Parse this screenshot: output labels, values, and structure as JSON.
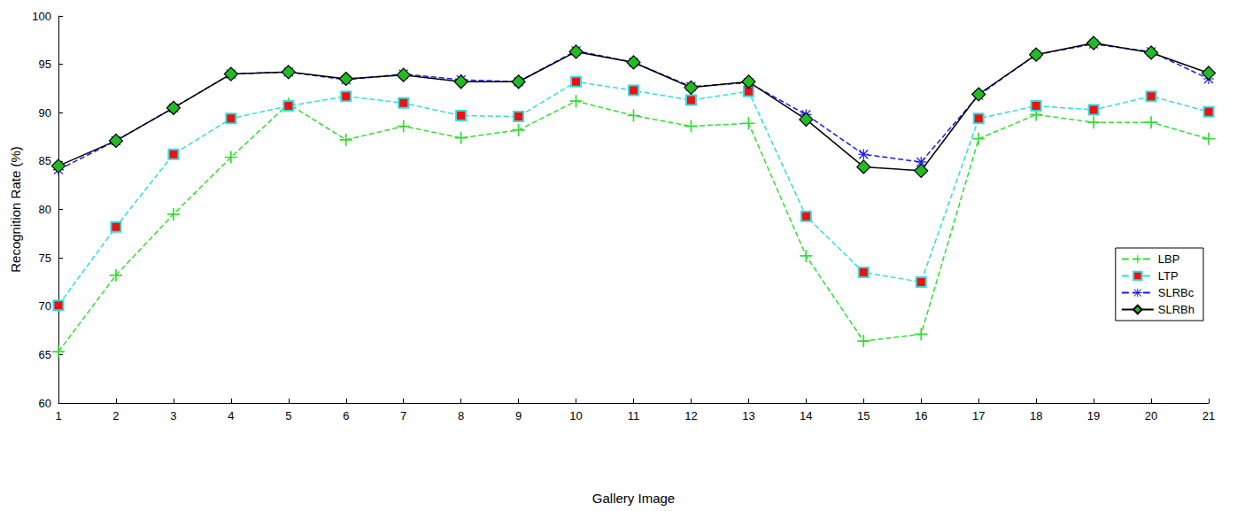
{
  "chart_data": {
    "type": "line",
    "x_label": "Gallery Image",
    "y_label": "Recognition Rate (%)",
    "categories": [
      "1",
      "2",
      "3",
      "4",
      "5",
      "6",
      "7",
      "8",
      "9",
      "10",
      "11",
      "12",
      "13",
      "14",
      "15",
      "16",
      "17",
      "18",
      "19",
      "20",
      "21"
    ],
    "ylim": [
      60,
      100
    ],
    "yticks": [
      60,
      65,
      70,
      75,
      80,
      85,
      90,
      95,
      100
    ],
    "grid": false,
    "legend": "lower right",
    "series": [
      {
        "name": "LBP",
        "color": "#33dd33",
        "marker": "plus",
        "line_style": "dashed",
        "values": [
          65.3,
          73.2,
          79.5,
          85.4,
          90.9,
          87.2,
          88.6,
          87.4,
          88.2,
          91.2,
          89.7,
          88.6,
          88.9,
          75.2,
          66.4,
          67.1,
          87.3,
          89.8,
          89.0,
          89.0,
          87.3
        ]
      },
      {
        "name": "LTP",
        "color": "#33dddd",
        "marker": "square",
        "line_style": "dashed",
        "values": [
          70.1,
          78.2,
          85.7,
          89.4,
          90.7,
          91.7,
          91.0,
          89.7,
          89.6,
          93.2,
          92.3,
          91.3,
          92.2,
          79.3,
          73.5,
          72.5,
          89.4,
          90.7,
          90.3,
          91.7,
          90.1
        ]
      },
      {
        "name": "SLRBc",
        "color": "#1a1aee",
        "marker": "asterisk",
        "line_style": "dashed",
        "values": [
          84.1,
          87.1,
          90.5,
          94.0,
          94.2,
          93.4,
          94.0,
          93.4,
          93.2,
          96.4,
          95.2,
          92.7,
          93.1,
          89.8,
          85.7,
          84.9,
          91.8,
          96.0,
          97.1,
          96.3,
          93.5
        ]
      },
      {
        "name": "SLRBh",
        "color": "#000000",
        "marker": "diamond",
        "line_style": "solid",
        "values": [
          84.5,
          87.1,
          90.5,
          94.0,
          94.2,
          93.5,
          93.9,
          93.2,
          93.2,
          96.3,
          95.2,
          92.6,
          93.2,
          89.3,
          84.4,
          84.0,
          91.9,
          96.0,
          97.2,
          96.2,
          94.1
        ]
      }
    ]
  }
}
